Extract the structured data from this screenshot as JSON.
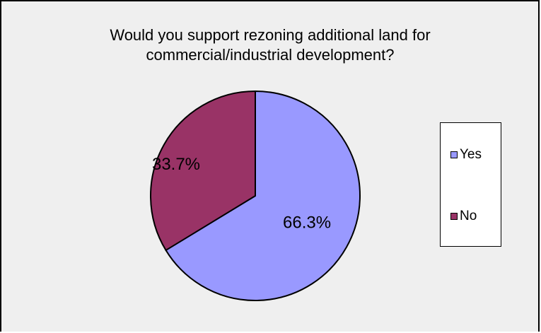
{
  "chart_data": {
    "type": "pie",
    "title": "Would you support rezoning additional land for commercial/industrial development?",
    "categories": [
      "Yes",
      "No"
    ],
    "values": [
      66.3,
      33.7
    ],
    "data_labels": [
      "66.3%",
      "33.7%"
    ],
    "colors": [
      "#9999ff",
      "#993366"
    ],
    "legend_position": "right"
  },
  "legend": {
    "items": [
      {
        "label": "Yes",
        "color": "#9999ff"
      },
      {
        "label": "No",
        "color": "#993366"
      }
    ]
  }
}
